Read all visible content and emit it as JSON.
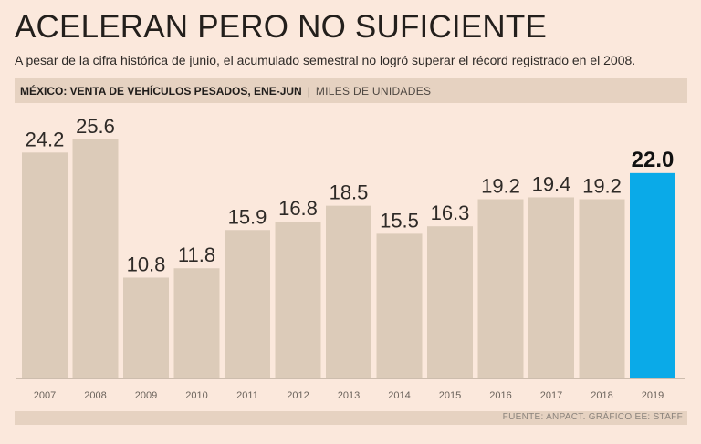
{
  "header": {
    "title": "ACELERAN PERO NO SUFICIENTE",
    "subtitle": "A pesar de la cifra histórica de junio, el acumulado semestral no logró superar el récord registrado en el 2008.",
    "band_strong": "MÉXICO: VENTA DE VEHÍCULOS PESADOS, ENE-JUN",
    "band_separator": "|",
    "band_unit": "MILES DE UNIDADES"
  },
  "footer": {
    "source": "FUENTE: ANPACT. GRÁFICO EE: STAFF"
  },
  "colors": {
    "bar": "#dccbb9",
    "highlight": "#0aaae8",
    "background": "#fbe8dc"
  },
  "chart_data": {
    "type": "bar",
    "title": "MÉXICO: VENTA DE VEHÍCULOS PESADOS, ENE-JUN",
    "xlabel": "",
    "ylabel": "MILES DE UNIDADES",
    "categories": [
      "2007",
      "2008",
      "2009",
      "2010",
      "2011",
      "2012",
      "2013",
      "2014",
      "2015",
      "2016",
      "2017",
      "2018",
      "2019"
    ],
    "values": [
      24.2,
      25.6,
      10.8,
      11.8,
      15.9,
      16.8,
      18.5,
      15.5,
      16.3,
      19.2,
      19.4,
      19.2,
      22.0
    ],
    "value_labels": [
      "24.2",
      "25.6",
      "10.8",
      "11.8",
      "15.9",
      "16.8",
      "18.5",
      "15.5",
      "16.3",
      "19.2",
      "19.4",
      "19.2",
      "22.0"
    ],
    "highlight_category": "2019",
    "ylim": [
      0,
      25.6
    ],
    "grid": false
  }
}
